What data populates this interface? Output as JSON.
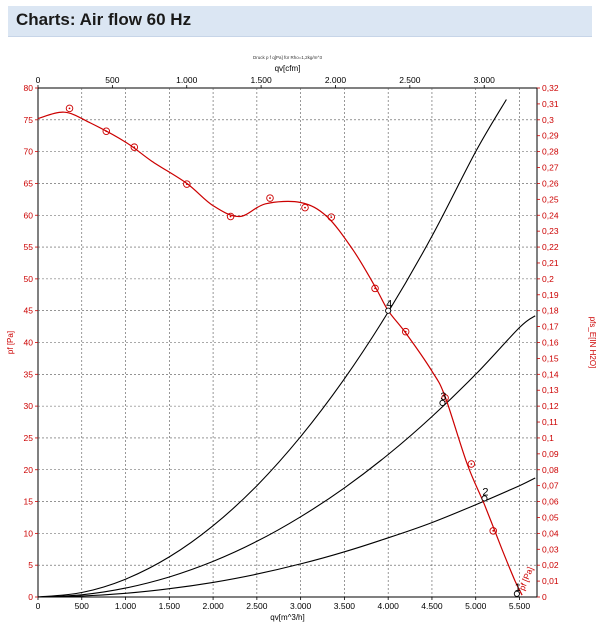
{
  "header": {
    "title": "Charts: Air flow 60 Hz"
  },
  "chart_data": {
    "type": "line",
    "title": "Druck p f q[Pa] für Rho=1,2kg/m^3",
    "x_bottom": {
      "label": "qv[m^3/h]",
      "range": [
        0,
        5700
      ],
      "ticks": [
        0,
        500,
        1000,
        1500,
        2000,
        2500,
        3000,
        3500,
        4000,
        4500,
        5000,
        5500
      ],
      "tick_labels": [
        "0",
        "500",
        "1.000",
        "1.500",
        "2.000",
        "2.500",
        "3.000",
        "3.500",
        "4.000",
        "4.500",
        "5.000",
        "5.500"
      ]
    },
    "x_top": {
      "label": "qv[cfm]",
      "range": [
        0,
        3354.9
      ],
      "ticks": [
        0,
        500,
        1000,
        1500,
        2000,
        2500,
        3000
      ],
      "tick_labels": [
        "0",
        "500",
        "1.000",
        "1.500",
        "2.000",
        "2.500",
        "3.000"
      ]
    },
    "y_left": {
      "label": "pf [Pa]",
      "range": [
        0,
        80
      ],
      "ticks": [
        0,
        5,
        10,
        15,
        20,
        25,
        30,
        35,
        40,
        45,
        50,
        55,
        60,
        65,
        70,
        75,
        80
      ],
      "tick_labels": [
        "0",
        "5",
        "10",
        "15",
        "20",
        "25",
        "30",
        "35",
        "40",
        "45",
        "50",
        "55",
        "60",
        "65",
        "70",
        "75",
        "80"
      ]
    },
    "y_right": {
      "label": "pfs_E[IN H2O]",
      "range": [
        0,
        0.32
      ],
      "ticks": [
        0,
        0.01,
        0.02,
        0.03,
        0.04,
        0.05,
        0.06,
        0.07,
        0.08,
        0.09,
        0.1,
        0.11,
        0.12,
        0.13,
        0.14,
        0.15,
        0.16,
        0.17,
        0.18,
        0.19,
        0.2,
        0.21,
        0.22,
        0.23,
        0.24,
        0.25,
        0.26,
        0.27,
        0.28,
        0.29,
        0.3,
        0.31,
        0.32
      ],
      "tick_labels": [
        "0",
        "0,01",
        "0,02",
        "0,03",
        "0,04",
        "0,05",
        "0,06",
        "0,07",
        "0,08",
        "0,09",
        "0,1",
        "0,11",
        "0,12",
        "0,13",
        "0,14",
        "0,15",
        "0,16",
        "0,17",
        "0,18",
        "0,19",
        "0,2",
        "0,21",
        "0,22",
        "0,23",
        "0,24",
        "0,25",
        "0,26",
        "0,27",
        "0,28",
        "0,29",
        "0,3",
        "0,31",
        "0,32"
      ]
    },
    "grid": true,
    "fan_curve": {
      "label": "pf [Pa]",
      "color": "#cc0000",
      "x": [
        0,
        300,
        600,
        1000,
        1300,
        1700,
        2000,
        2300,
        2600,
        3000,
        3300,
        3600,
        3850,
        4000,
        4200,
        4500,
        4650,
        4900,
        5100,
        5300,
        5450,
        5530
      ],
      "y": [
        75.2,
        76.2,
        74.5,
        71.5,
        68.5,
        65.0,
        61.5,
        59.8,
        61.8,
        62.0,
        59.8,
        54.5,
        48.8,
        45.0,
        41.5,
        35.5,
        31.5,
        21.0,
        14.5,
        7.5,
        2.5,
        0.3
      ]
    },
    "fan_markers": {
      "x": [
        360,
        780,
        1100,
        1700,
        2200,
        2650,
        3050,
        3350,
        3850,
        4200,
        4650,
        4950,
        5200
      ],
      "y": [
        76.8,
        73.2,
        70.7,
        64.9,
        59.8,
        62.7,
        61.2,
        59.7,
        48.5,
        41.7,
        31.3,
        20.9,
        10.4
      ]
    },
    "system_curves": [
      {
        "name": "4",
        "x": [
          0,
          500,
          1000,
          1500,
          2000,
          2500,
          3000,
          3500,
          4000,
          4500,
          5000,
          5350
        ],
        "y": [
          0,
          0.7,
          2.8,
          6.3,
          11.2,
          17.5,
          25.2,
          34.3,
          44.8,
          56.7,
          70.0,
          78.2
        ]
      },
      {
        "name": "3",
        "x": [
          0,
          500,
          1000,
          1500,
          2000,
          2500,
          3000,
          3500,
          4000,
          4500,
          5000,
          5500,
          5680
        ],
        "y": [
          0,
          0.35,
          1.4,
          3.15,
          5.6,
          8.75,
          12.6,
          17.15,
          22.4,
          28.35,
          35.0,
          42.35,
          44.2
        ]
      },
      {
        "name": "2",
        "x": [
          0,
          500,
          1000,
          1500,
          2000,
          2500,
          3000,
          3500,
          4000,
          4500,
          5000,
          5500,
          5680
        ],
        "y": [
          0,
          0.15,
          0.58,
          1.3,
          2.3,
          3.6,
          5.2,
          7.1,
          9.3,
          11.7,
          14.5,
          17.5,
          18.7
        ]
      }
    ],
    "operating_points": [
      {
        "label": "4",
        "x": 4000,
        "y": 45
      },
      {
        "label": "3",
        "x": 4620,
        "y": 30.5
      },
      {
        "label": "2",
        "x": 5100,
        "y": 15.5
      },
      {
        "label": "1",
        "x": 5470,
        "y": 0.5
      }
    ]
  }
}
